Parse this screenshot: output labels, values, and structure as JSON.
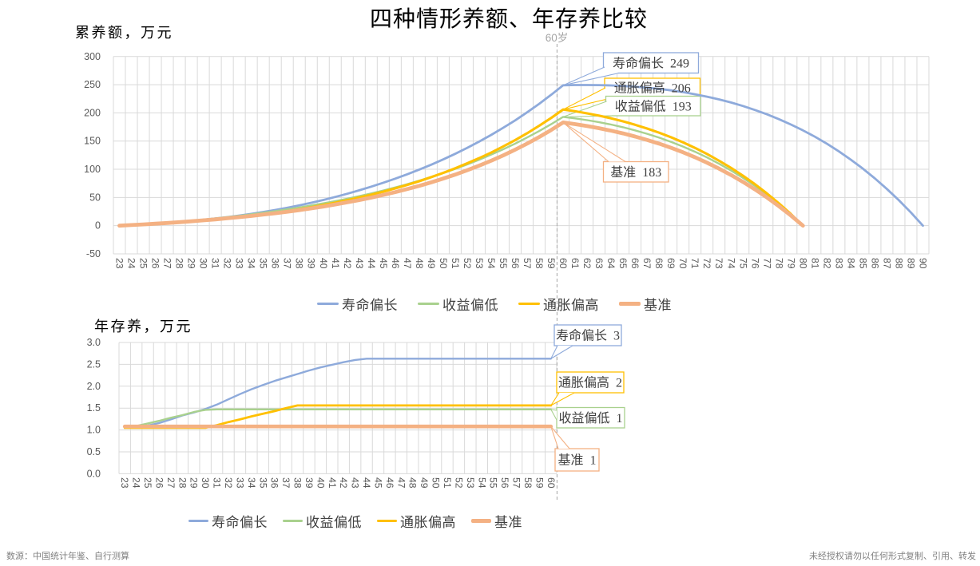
{
  "title": "四种情形养额、年存养比较",
  "age_marker": "60岁",
  "footer": {
    "left": "数源：中国统计年鉴、自行测算",
    "right": "未经授权请勿以任何形式复制、引用、转发"
  },
  "colors": {
    "blue": "#8EAADB",
    "green": "#A9D18E",
    "yellow": "#FFC000",
    "orange": "#F4B183",
    "grid": "#D9D9D9",
    "tick_text": "#595959",
    "dash_line": "#A6A6A6",
    "marker_text": "#A6A6A6",
    "callout_text": "#404040",
    "footer_text": "#808080"
  },
  "legend": [
    {
      "key": "blue",
      "label": "寿命偏长"
    },
    {
      "key": "green",
      "label": "收益偏低"
    },
    {
      "key": "yellow",
      "label": "通胀偏高"
    },
    {
      "key": "orange",
      "label": "基准"
    }
  ],
  "chart_data": [
    {
      "type": "line",
      "axis_title": "累养额，万元",
      "ylim": [
        -50,
        300
      ],
      "y_ticks": [
        {
          "label": "300",
          "value": 300
        },
        {
          "label": "250",
          "value": 250
        },
        {
          "label": "200",
          "value": 200
        },
        {
          "label": "150",
          "value": 150
        },
        {
          "label": "100",
          "value": 100
        },
        {
          "label": "50",
          "value": 50
        },
        {
          "label": "0",
          "value": 0
        },
        {
          "label": "-50",
          "value": -50
        }
      ],
      "x_ticks": [
        23,
        24,
        25,
        26,
        27,
        28,
        29,
        30,
        31,
        32,
        33,
        34,
        35,
        36,
        37,
        38,
        39,
        40,
        41,
        42,
        43,
        44,
        45,
        46,
        47,
        48,
        49,
        50,
        51,
        52,
        53,
        54,
        55,
        56,
        57,
        58,
        59,
        60,
        61,
        62,
        63,
        64,
        65,
        66,
        67,
        68,
        69,
        70,
        71,
        72,
        73,
        74,
        75,
        76,
        77,
        78,
        79,
        80,
        81,
        82,
        83,
        84,
        85,
        86,
        87,
        88,
        89,
        90
      ],
      "grid": true,
      "series": [
        {
          "name": "寿命偏长",
          "key": "blue",
          "age_start": 23,
          "values": [
            0.0,
            1.1,
            2.2,
            3.5,
            5.0,
            6.6,
            8.4,
            10.4,
            12.7,
            15.1,
            17.9,
            20.9,
            24.3,
            27.9,
            31.8,
            36.1,
            40.6,
            45.6,
            50.9,
            56.6,
            62.7,
            69.2,
            76.1,
            83.4,
            91.2,
            99.5,
            108.2,
            117.5,
            127.4,
            137.9,
            149.1,
            160.9,
            173.5,
            186.8,
            201.0,
            216.1,
            232.0,
            249.0,
            249.4,
            249.5,
            249.3,
            248.7,
            247.8,
            246.5,
            244.7,
            242.6,
            239.9,
            236.8,
            233.1,
            228.8,
            223.9,
            218.4,
            212.2,
            205.2,
            197.5,
            188.9,
            179.4,
            169.1,
            157.7,
            145.3,
            131.7,
            117.0,
            101.1,
            83.8,
            65.1,
            45.0,
            23.3,
            0.0
          ]
        },
        {
          "name": "收益偏低",
          "key": "green",
          "age_start": 23,
          "values": [
            0.0,
            1.1,
            2.3,
            3.7,
            5.2,
            6.9,
            8.7,
            10.7,
            12.9,
            15.2,
            17.6,
            20.2,
            23.0,
            25.9,
            29.0,
            32.3,
            35.9,
            39.6,
            43.6,
            47.9,
            52.4,
            57.2,
            62.3,
            67.8,
            73.6,
            79.8,
            86.3,
            93.3,
            100.7,
            108.6,
            117.0,
            126.0,
            135.5,
            145.6,
            156.4,
            167.8,
            180.0,
            193.0,
            190.3,
            187.2,
            183.5,
            179.3,
            174.5,
            169.1,
            163.0,
            156.2,
            148.6,
            140.3,
            131.1,
            121.0,
            109.9,
            97.8,
            84.6,
            70.3,
            54.8,
            37.9,
            19.7,
            0.0
          ]
        },
        {
          "name": "通胀偏高",
          "key": "yellow",
          "age_start": 23,
          "values": [
            0.0,
            1.1,
            2.2,
            3.4,
            4.7,
            6.0,
            7.5,
            9.1,
            10.8,
            12.8,
            14.9,
            17.3,
            19.9,
            22.7,
            25.8,
            29.1,
            32.7,
            36.6,
            40.7,
            45.1,
            49.9,
            54.9,
            60.3,
            66.1,
            72.3,
            78.9,
            86.0,
            93.6,
            101.8,
            110.5,
            119.8,
            129.7,
            140.4,
            151.8,
            164.0,
            177.1,
            191.0,
            206.0,
            202.9,
            199.2,
            195.1,
            190.4,
            185.0,
            179.0,
            172.3,
            164.9,
            156.8,
            147.8,
            137.9,
            127.1,
            115.3,
            102.5,
            88.5,
            73.4,
            57.1,
            39.5,
            20.5,
            0.0
          ]
        },
        {
          "name": "基准",
          "key": "orange",
          "age_start": 23,
          "values": [
            0.0,
            1.1,
            2.2,
            3.5,
            4.8,
            6.2,
            7.8,
            9.4,
            11.2,
            13.1,
            15.1,
            17.3,
            19.6,
            22.1,
            24.8,
            27.6,
            30.7,
            34.0,
            37.6,
            41.4,
            45.4,
            49.8,
            54.5,
            59.5,
            64.9,
            70.7,
            76.9,
            83.5,
            90.6,
            98.3,
            106.4,
            115.2,
            124.6,
            134.7,
            145.6,
            157.2,
            169.6,
            183.0,
            180.1,
            176.7,
            172.8,
            168.5,
            163.6,
            158.2,
            152.1,
            145.5,
            138.1,
            130.1,
            121.3,
            111.7,
            101.2,
            89.9,
            77.6,
            64.3,
            50.0,
            34.5,
            17.9,
            0.0
          ]
        }
      ],
      "callouts": [
        {
          "key": "blue",
          "label": "寿命偏长",
          "value": "249",
          "anchor_age": 60,
          "anchor_value": 249
        },
        {
          "key": "yellow",
          "label": "通胀偏高",
          "value": "206",
          "anchor_age": 60,
          "anchor_value": 206
        },
        {
          "key": "green",
          "label": "收益偏低",
          "value": "193",
          "anchor_age": 60,
          "anchor_value": 193
        },
        {
          "key": "orange",
          "label": "基准",
          "value": "183",
          "anchor_age": 60,
          "anchor_value": 183
        }
      ]
    },
    {
      "type": "line",
      "axis_title": "年存养，万元",
      "ylim": [
        0.0,
        3.0
      ],
      "y_ticks": [
        {
          "label": "3.0",
          "value": 3.0
        },
        {
          "label": "2.5",
          "value": 2.5
        },
        {
          "label": "2.0",
          "value": 2.0
        },
        {
          "label": "1.5",
          "value": 1.5
        },
        {
          "label": "1.0",
          "value": 1.0
        },
        {
          "label": "0.5",
          "value": 0.5
        },
        {
          "label": "0.0",
          "value": 0.0
        }
      ],
      "x_ticks": [
        23,
        24,
        25,
        26,
        27,
        28,
        29,
        30,
        31,
        32,
        33,
        34,
        35,
        36,
        37,
        38,
        39,
        40,
        41,
        42,
        43,
        44,
        45,
        46,
        47,
        48,
        49,
        50,
        51,
        52,
        53,
        54,
        55,
        56,
        57,
        58,
        59,
        60
      ],
      "grid": true,
      "series": [
        {
          "name": "寿命偏长",
          "key": "blue",
          "age_start": 23,
          "values": [
            1.05,
            1.07,
            1.1,
            1.16,
            1.24,
            1.33,
            1.4,
            1.48,
            1.58,
            1.7,
            1.82,
            1.93,
            2.03,
            2.12,
            2.2,
            2.28,
            2.36,
            2.43,
            2.49,
            2.55,
            2.6,
            2.63,
            2.63,
            2.63,
            2.63,
            2.63,
            2.63,
            2.63,
            2.63,
            2.63,
            2.63,
            2.63,
            2.63,
            2.63,
            2.63,
            2.63,
            2.63,
            2.63
          ]
        },
        {
          "name": "收益偏低",
          "key": "green",
          "age_start": 23,
          "values": [
            1.07,
            1.09,
            1.15,
            1.21,
            1.28,
            1.34,
            1.41,
            1.46,
            1.47,
            1.47,
            1.47,
            1.47,
            1.47,
            1.47,
            1.47,
            1.47,
            1.47,
            1.47,
            1.47,
            1.47,
            1.47,
            1.47,
            1.47,
            1.47,
            1.47,
            1.47,
            1.47,
            1.47,
            1.47,
            1.47,
            1.47,
            1.47,
            1.47,
            1.47,
            1.47,
            1.47,
            1.47,
            1.47
          ]
        },
        {
          "name": "通胀偏高",
          "key": "yellow",
          "age_start": 23,
          "values": [
            1.05,
            1.05,
            1.05,
            1.05,
            1.05,
            1.05,
            1.05,
            1.05,
            1.11,
            1.18,
            1.24,
            1.31,
            1.37,
            1.43,
            1.5,
            1.56,
            1.56,
            1.56,
            1.56,
            1.56,
            1.56,
            1.56,
            1.56,
            1.56,
            1.56,
            1.56,
            1.56,
            1.56,
            1.56,
            1.56,
            1.56,
            1.56,
            1.56,
            1.56,
            1.56,
            1.56,
            1.56,
            1.56
          ]
        },
        {
          "name": "基准",
          "key": "orange",
          "age_start": 23,
          "values": [
            1.08,
            1.08,
            1.08,
            1.08,
            1.08,
            1.08,
            1.08,
            1.08,
            1.08,
            1.08,
            1.08,
            1.08,
            1.08,
            1.08,
            1.08,
            1.08,
            1.08,
            1.08,
            1.08,
            1.08,
            1.08,
            1.08,
            1.08,
            1.08,
            1.08,
            1.08,
            1.08,
            1.08,
            1.08,
            1.08,
            1.08,
            1.08,
            1.08,
            1.08,
            1.08,
            1.08,
            1.08,
            1.08
          ]
        }
      ],
      "callouts": [
        {
          "key": "blue",
          "label": "寿命偏长",
          "value": "3",
          "anchor_age": 60,
          "anchor_value": 2.63
        },
        {
          "key": "yellow",
          "label": "通胀偏高",
          "value": "2",
          "anchor_age": 60,
          "anchor_value": 1.56
        },
        {
          "key": "green",
          "label": "收益偏低",
          "value": "1",
          "anchor_age": 60,
          "anchor_value": 1.47
        },
        {
          "key": "orange",
          "label": "基准",
          "value": "1",
          "anchor_age": 60,
          "anchor_value": 1.08
        }
      ]
    }
  ]
}
